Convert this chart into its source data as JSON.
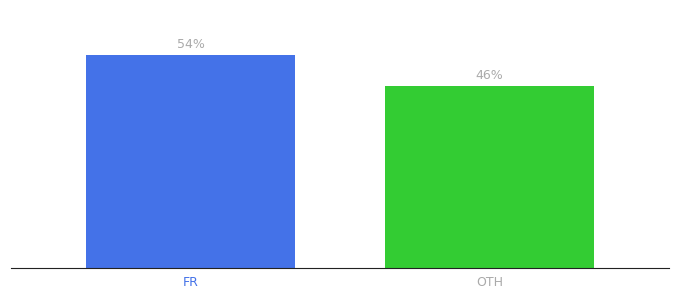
{
  "categories": [
    "FR",
    "OTH"
  ],
  "values": [
    54,
    46
  ],
  "bar_colors": [
    "#4472e8",
    "#33cc33"
  ],
  "label_template": "{}%",
  "label_color": "#aaaaaa",
  "label_fontsize": 9,
  "tick_fontsize": 9,
  "fr_tick_color": "#4472e8",
  "oth_tick_color": "#aaaaaa",
  "background_color": "#ffffff",
  "ylim": [
    0,
    65
  ],
  "bar_width": 0.7,
  "bar_positions": [
    0.3,
    0.7
  ],
  "figsize": [
    6.8,
    3.0
  ],
  "dpi": 100
}
